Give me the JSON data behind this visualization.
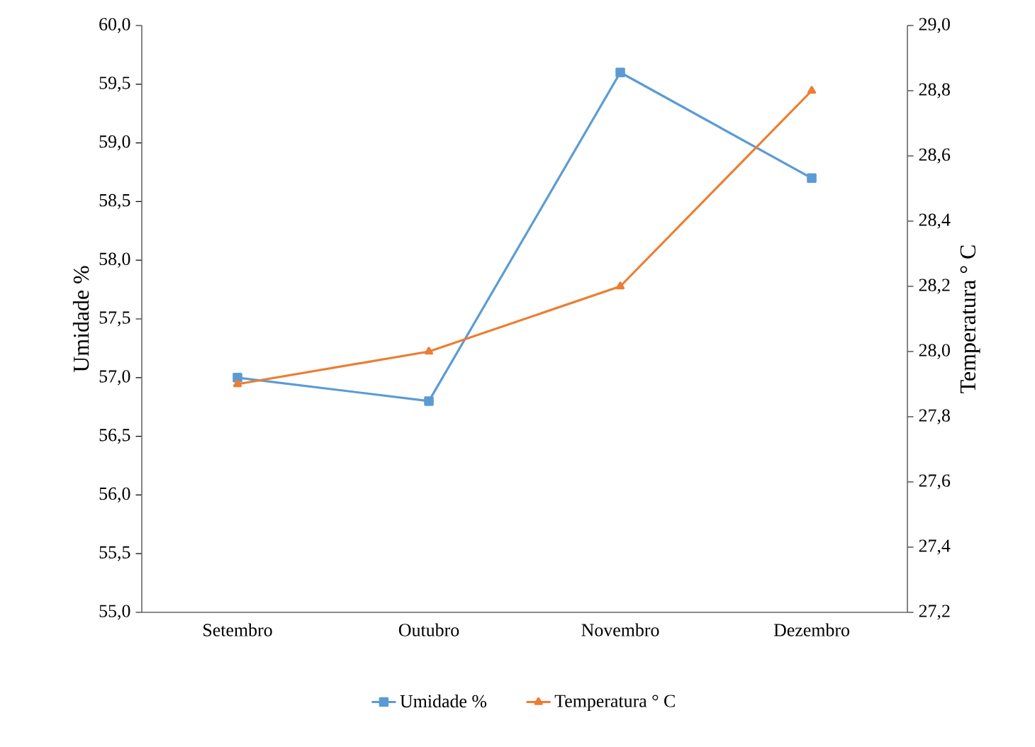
{
  "chart_data": {
    "type": "line",
    "ylabel": "Umidade %",
    "y2label": "Temperatura ° C",
    "categories": [
      "Setembro",
      "Outubro",
      "Novembro",
      "Dezembro"
    ],
    "series": [
      {
        "name": "Umidade %",
        "color": "#5b9bd5",
        "marker": "square",
        "values": [
          57.0,
          56.8,
          59.6,
          58.7
        ]
      },
      {
        "name": "Temperatura ° C",
        "color": "#ed7d31",
        "marker": "triangle",
        "axis": "y2",
        "values": [
          27.9,
          28.0,
          28.2,
          28.8
        ]
      }
    ],
    "ylim": [
      55,
      60
    ],
    "yticks": [
      {
        "value": 55,
        "label": "55,0"
      },
      {
        "value": 55.5,
        "label": "55,5"
      },
      {
        "value": 56,
        "label": "56,0"
      },
      {
        "value": 56.5,
        "label": "56,5"
      },
      {
        "value": 57,
        "label": "57,0"
      },
      {
        "value": 57.5,
        "label": "57,5"
      },
      {
        "value": 58,
        "label": "58,0"
      },
      {
        "value": 58.5,
        "label": "58,5"
      },
      {
        "value": 59,
        "label": "59,0"
      },
      {
        "value": 59.5,
        "label": "59,5"
      },
      {
        "value": 60,
        "label": "60,0"
      }
    ],
    "y2lim": [
      27.2,
      29
    ],
    "y2ticks": [
      {
        "value": 27.2,
        "label": "27,2"
      },
      {
        "value": 27.4,
        "label": "27,4"
      },
      {
        "value": 27.6,
        "label": "27,6"
      },
      {
        "value": 27.8,
        "label": "27,8"
      },
      {
        "value": 28,
        "label": "28,0"
      },
      {
        "value": 28.2,
        "label": "28,2"
      },
      {
        "value": 28.4,
        "label": "28,4"
      },
      {
        "value": 28.6,
        "label": "28,6"
      },
      {
        "value": 28.8,
        "label": "28,8"
      },
      {
        "value": 29,
        "label": "29,0"
      }
    ],
    "grid": false,
    "legend": "bottom"
  }
}
